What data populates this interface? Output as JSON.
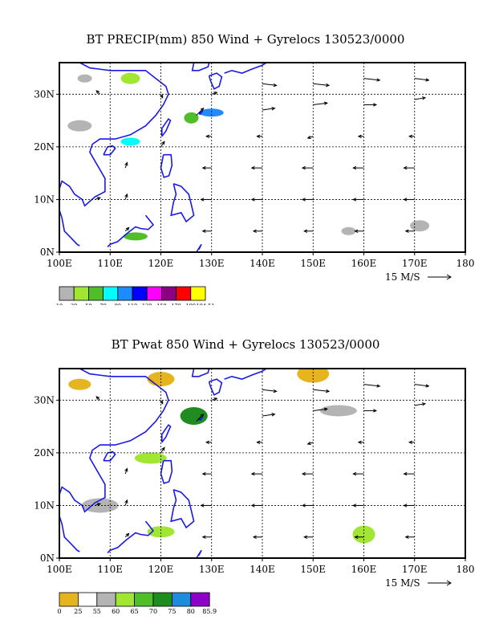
{
  "chart_data": [
    {
      "type": "heatmap",
      "title": "BT PRECIP(mm) 850 Wind + Gyrelocs 130523/0000",
      "field": "precipitation (mm) with 850 hPa wind vectors",
      "x_ticks": [
        "100E",
        "110E",
        "120E",
        "130E",
        "140E",
        "150E",
        "160E",
        "170E",
        "180"
      ],
      "y_ticks": [
        "0N",
        "10N",
        "20N",
        "30N"
      ],
      "xlim": [
        100,
        180
      ],
      "ylim": [
        0,
        36
      ],
      "grid": true,
      "vector_scale_label": "15 M/S",
      "colorbar": {
        "labels": [
          "10",
          "30",
          "50",
          "70",
          "90",
          "110",
          "130",
          "150",
          "170",
          "190",
          "194.51"
        ],
        "colors": [
          "#b4b4b4",
          "#a0e632",
          "#50be28",
          "#00ffff",
          "#1e8cff",
          "#0000ff",
          "#ff00ff",
          "#8c0082",
          "#ff0000",
          "#ffff00"
        ]
      },
      "precip_areas": [
        {
          "lon": 105,
          "lat": 33,
          "value": 10
        },
        {
          "lon": 114,
          "lat": 33,
          "value": 30
        },
        {
          "lon": 130,
          "lat": 26.5,
          "value": 90
        },
        {
          "lon": 126,
          "lat": 25.5,
          "value": 50
        },
        {
          "lon": 114,
          "lat": 21,
          "value": 70
        },
        {
          "lon": 104,
          "lat": 24,
          "value": 10
        },
        {
          "lon": 157,
          "lat": 4,
          "value": 10
        },
        {
          "lon": 171,
          "lat": 5,
          "value": 10
        },
        {
          "lon": 115,
          "lat": 3,
          "value": 50
        }
      ],
      "wind_vectors": [
        {
          "lon": 130,
          "lat": 30,
          "u": 3,
          "v": 1
        },
        {
          "lon": 140,
          "lat": 32,
          "u": 8,
          "v": -1
        },
        {
          "lon": 150,
          "lat": 32,
          "u": 9,
          "v": -1
        },
        {
          "lon": 160,
          "lat": 33,
          "u": 9,
          "v": -1
        },
        {
          "lon": 170,
          "lat": 33,
          "u": 8,
          "v": -1
        },
        {
          "lon": 140,
          "lat": 27,
          "u": 7,
          "v": 1
        },
        {
          "lon": 150,
          "lat": 28,
          "u": 8,
          "v": 1
        },
        {
          "lon": 160,
          "lat": 28,
          "u": 7,
          "v": 0
        },
        {
          "lon": 170,
          "lat": 29,
          "u": 6,
          "v": 1
        },
        {
          "lon": 130,
          "lat": 22,
          "u": -3,
          "v": 0
        },
        {
          "lon": 140,
          "lat": 22,
          "u": -3,
          "v": 0
        },
        {
          "lon": 150,
          "lat": 22,
          "u": -3,
          "v": -1
        },
        {
          "lon": 160,
          "lat": 22,
          "u": -3,
          "v": 0
        },
        {
          "lon": 170,
          "lat": 22,
          "u": -3,
          "v": 0
        },
        {
          "lon": 130,
          "lat": 16,
          "u": -5,
          "v": 0
        },
        {
          "lon": 140,
          "lat": 16,
          "u": -6,
          "v": 0
        },
        {
          "lon": 150,
          "lat": 16,
          "u": -6,
          "v": 0
        },
        {
          "lon": 160,
          "lat": 16,
          "u": -6,
          "v": 0
        },
        {
          "lon": 170,
          "lat": 16,
          "u": -6,
          "v": 0
        },
        {
          "lon": 130,
          "lat": 10,
          "u": -6,
          "v": 0
        },
        {
          "lon": 140,
          "lat": 10,
          "u": -6,
          "v": 0
        },
        {
          "lon": 150,
          "lat": 10,
          "u": -6,
          "v": 0
        },
        {
          "lon": 160,
          "lat": 10,
          "u": -6,
          "v": 0
        },
        {
          "lon": 170,
          "lat": 10,
          "u": -6,
          "v": 0
        },
        {
          "lon": 130,
          "lat": 4,
          "u": -5,
          "v": 0
        },
        {
          "lon": 140,
          "lat": 4,
          "u": -5,
          "v": 0
        },
        {
          "lon": 150,
          "lat": 4,
          "u": -5,
          "v": 0
        },
        {
          "lon": 160,
          "lat": 4,
          "u": -5,
          "v": 0
        },
        {
          "lon": 170,
          "lat": 4,
          "u": -5,
          "v": 0
        },
        {
          "lon": 113,
          "lat": 16,
          "u": 1,
          "v": 3
        },
        {
          "lon": 113,
          "lat": 10,
          "u": 1,
          "v": 3
        },
        {
          "lon": 113,
          "lat": 4,
          "u": 2,
          "v": 2
        },
        {
          "lon": 107,
          "lat": 10,
          "u": 3,
          "v": 1
        },
        {
          "lon": 120,
          "lat": 20,
          "u": 2,
          "v": 3
        },
        {
          "lon": 127,
          "lat": 26,
          "u": 4,
          "v": 4
        },
        {
          "lon": 108,
          "lat": 30,
          "u": -2,
          "v": 2
        },
        {
          "lon": 120,
          "lat": 30,
          "u": 1,
          "v": -2
        }
      ]
    },
    {
      "type": "heatmap",
      "title": "BT Pwat 850 Wind + Gyrelocs 130523/0000",
      "field": "precipitable water with 850 hPa wind vectors",
      "x_ticks": [
        "100E",
        "110E",
        "120E",
        "130E",
        "140E",
        "150E",
        "160E",
        "170E",
        "180"
      ],
      "y_ticks": [
        "0N",
        "10N",
        "20N",
        "30N"
      ],
      "xlim": [
        100,
        180
      ],
      "ylim": [
        0,
        36
      ],
      "grid": true,
      "vector_scale_label": "15 M/S",
      "colorbar": {
        "labels": [
          "0",
          "25",
          "55",
          "60",
          "65",
          "70",
          "75",
          "80",
          "85.9"
        ],
        "colors": [
          "#e6b41e",
          "#ffffff",
          "#b4b4b4",
          "#a0e632",
          "#50be28",
          "#1e8c1e",
          "#1e8cdc",
          "#8c00c8"
        ]
      },
      "pwat_areas": [
        {
          "lon": 104,
          "lat": 33,
          "value": 0
        },
        {
          "lon": 120,
          "lat": 34,
          "value": 0
        },
        {
          "lon": 150,
          "lat": 35,
          "value": 0
        },
        {
          "lon": 155,
          "lat": 28,
          "value": 55
        },
        {
          "lon": 127,
          "lat": 27,
          "value": 65
        },
        {
          "lon": 126.5,
          "lat": 27,
          "value": 70
        },
        {
          "lon": 118,
          "lat": 19,
          "value": 60
        },
        {
          "lon": 108,
          "lat": 10,
          "value": 55
        },
        {
          "lon": 160,
          "lat": 4.5,
          "value": 60
        },
        {
          "lon": 120,
          "lat": 5,
          "value": 60
        }
      ],
      "wind_vectors": [
        {
          "lon": 130,
          "lat": 30,
          "u": 3,
          "v": 1
        },
        {
          "lon": 140,
          "lat": 32,
          "u": 8,
          "v": -1
        },
        {
          "lon": 150,
          "lat": 32,
          "u": 9,
          "v": -1
        },
        {
          "lon": 160,
          "lat": 33,
          "u": 9,
          "v": -1
        },
        {
          "lon": 170,
          "lat": 33,
          "u": 8,
          "v": -1
        },
        {
          "lon": 140,
          "lat": 27,
          "u": 7,
          "v": 1
        },
        {
          "lon": 150,
          "lat": 28,
          "u": 8,
          "v": 1
        },
        {
          "lon": 160,
          "lat": 28,
          "u": 7,
          "v": 0
        },
        {
          "lon": 170,
          "lat": 29,
          "u": 6,
          "v": 1
        },
        {
          "lon": 130,
          "lat": 22,
          "u": -3,
          "v": 0
        },
        {
          "lon": 140,
          "lat": 22,
          "u": -3,
          "v": 0
        },
        {
          "lon": 150,
          "lat": 22,
          "u": -3,
          "v": -1
        },
        {
          "lon": 160,
          "lat": 22,
          "u": -3,
          "v": 0
        },
        {
          "lon": 170,
          "lat": 22,
          "u": -3,
          "v": 0
        },
        {
          "lon": 130,
          "lat": 16,
          "u": -5,
          "v": 0
        },
        {
          "lon": 140,
          "lat": 16,
          "u": -6,
          "v": 0
        },
        {
          "lon": 150,
          "lat": 16,
          "u": -6,
          "v": 0
        },
        {
          "lon": 160,
          "lat": 16,
          "u": -6,
          "v": 0
        },
        {
          "lon": 170,
          "lat": 16,
          "u": -6,
          "v": 0
        },
        {
          "lon": 130,
          "lat": 10,
          "u": -6,
          "v": 0
        },
        {
          "lon": 140,
          "lat": 10,
          "u": -6,
          "v": 0
        },
        {
          "lon": 150,
          "lat": 10,
          "u": -6,
          "v": 0
        },
        {
          "lon": 160,
          "lat": 10,
          "u": -6,
          "v": 0
        },
        {
          "lon": 170,
          "lat": 10,
          "u": -6,
          "v": 0
        },
        {
          "lon": 130,
          "lat": 4,
          "u": -5,
          "v": 0
        },
        {
          "lon": 140,
          "lat": 4,
          "u": -5,
          "v": 0
        },
        {
          "lon": 150,
          "lat": 4,
          "u": -5,
          "v": 0
        },
        {
          "lon": 160,
          "lat": 4,
          "u": -5,
          "v": 0
        },
        {
          "lon": 170,
          "lat": 4,
          "u": -5,
          "v": 0
        },
        {
          "lon": 113,
          "lat": 16,
          "u": 1,
          "v": 3
        },
        {
          "lon": 113,
          "lat": 10,
          "u": 1,
          "v": 3
        },
        {
          "lon": 113,
          "lat": 4,
          "u": 2,
          "v": 2
        },
        {
          "lon": 107,
          "lat": 10,
          "u": 3,
          "v": 1
        },
        {
          "lon": 120,
          "lat": 20,
          "u": 2,
          "v": 3
        },
        {
          "lon": 127,
          "lat": 26,
          "u": 4,
          "v": 4
        },
        {
          "lon": 108,
          "lat": 30,
          "u": -2,
          "v": 2
        },
        {
          "lon": 120,
          "lat": 30,
          "u": 1,
          "v": -2
        }
      ]
    }
  ]
}
